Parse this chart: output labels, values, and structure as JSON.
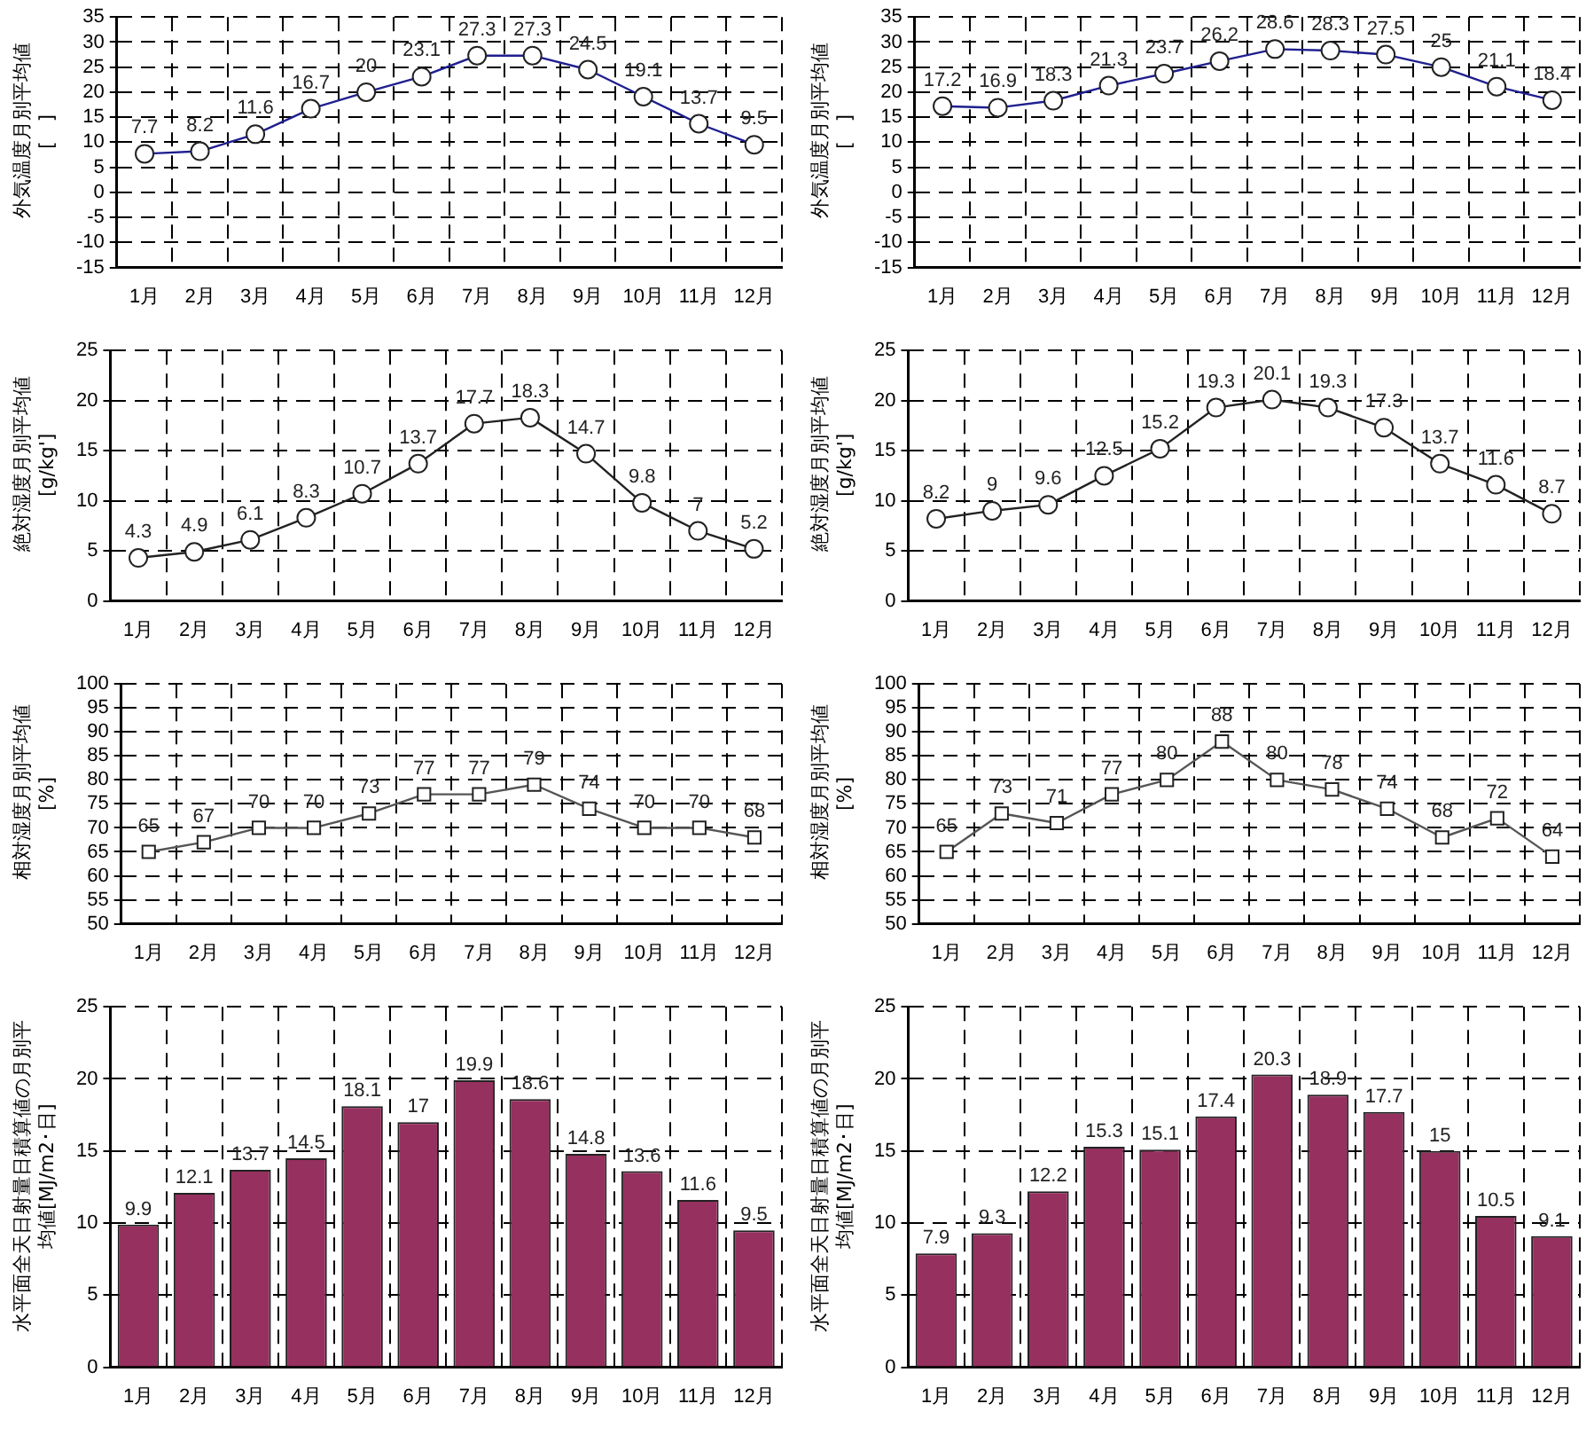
{
  "chart_data": [
    {
      "type": "line",
      "ylabel": "外気温度月別平均値[　]",
      "categories": [
        "1月",
        "2月",
        "3月",
        "4月",
        "5月",
        "6月",
        "7月",
        "8月",
        "9月",
        "10月",
        "11月",
        "12月"
      ],
      "series": [
        {
          "color": "#1f1f8f",
          "values": [
            7.7,
            8.2,
            11.6,
            16.7,
            20,
            23.1,
            27.3,
            27.3,
            24.5,
            19.1,
            13.7,
            9.5
          ]
        }
      ],
      "ylim": [
        -15,
        35
      ],
      "yticks": [
        -15,
        -10,
        -5,
        0,
        5,
        10,
        15,
        20,
        25,
        30,
        35
      ],
      "grid": true,
      "marker": "circle",
      "data_labels": true,
      "legend": false
    },
    {
      "type": "line",
      "ylabel": "外気温度月別平均値[　]",
      "categories": [
        "1月",
        "2月",
        "3月",
        "4月",
        "5月",
        "6月",
        "7月",
        "8月",
        "9月",
        "10月",
        "11月",
        "12月"
      ],
      "series": [
        {
          "color": "#1f1f8f",
          "values": [
            17.2,
            16.9,
            18.3,
            21.3,
            23.7,
            26.2,
            28.6,
            28.3,
            27.5,
            25,
            21.1,
            18.4
          ]
        }
      ],
      "ylim": [
        -15,
        35
      ],
      "yticks": [
        -15,
        -10,
        -5,
        0,
        5,
        10,
        15,
        20,
        25,
        30,
        35
      ],
      "grid": true,
      "marker": "circle",
      "data_labels": true,
      "legend": false
    },
    {
      "type": "line",
      "ylabel": "絶対湿度月別平均値[g/kg']",
      "categories": [
        "1月",
        "2月",
        "3月",
        "4月",
        "5月",
        "6月",
        "7月",
        "8月",
        "9月",
        "10月",
        "11月",
        "12月"
      ],
      "series": [
        {
          "color": "#222222",
          "values": [
            4.3,
            4.9,
            6.1,
            8.3,
            10.7,
            13.7,
            17.7,
            18.3,
            14.7,
            9.8,
            7,
            5.2
          ]
        }
      ],
      "ylim": [
        0,
        25
      ],
      "yticks": [
        0,
        5,
        10,
        15,
        20,
        25
      ],
      "grid": true,
      "marker": "circle",
      "data_labels": true,
      "legend": false
    },
    {
      "type": "line",
      "ylabel": "絶対湿度月別平均値[g/kg']",
      "categories": [
        "1月",
        "2月",
        "3月",
        "4月",
        "5月",
        "6月",
        "7月",
        "8月",
        "9月",
        "10月",
        "11月",
        "12月"
      ],
      "series": [
        {
          "color": "#222222",
          "values": [
            8.2,
            9,
            9.6,
            12.5,
            15.2,
            19.3,
            20.1,
            19.3,
            17.3,
            13.7,
            11.6,
            8.7
          ]
        }
      ],
      "ylim": [
        0,
        25
      ],
      "yticks": [
        0,
        5,
        10,
        15,
        20,
        25
      ],
      "grid": true,
      "marker": "circle",
      "data_labels": true,
      "legend": false
    },
    {
      "type": "line",
      "ylabel": "相対湿度月別平均値[%]",
      "categories": [
        "1月",
        "2月",
        "3月",
        "4月",
        "5月",
        "6月",
        "7月",
        "8月",
        "9月",
        "10月",
        "11月",
        "12月"
      ],
      "series": [
        {
          "color": "#555555",
          "values": [
            65,
            67,
            70,
            70,
            73,
            77,
            77,
            79,
            74,
            70,
            70,
            68
          ]
        }
      ],
      "ylim": [
        50,
        100
      ],
      "yticks": [
        50,
        55,
        60,
        65,
        70,
        75,
        80,
        85,
        90,
        95,
        100
      ],
      "grid": true,
      "marker": "square",
      "data_labels": true,
      "legend": false
    },
    {
      "type": "line",
      "ylabel": "相対湿度月別平均値[%]",
      "categories": [
        "1月",
        "2月",
        "3月",
        "4月",
        "5月",
        "6月",
        "7月",
        "8月",
        "9月",
        "10月",
        "11月",
        "12月"
      ],
      "series": [
        {
          "color": "#555555",
          "values": [
            65,
            73,
            71,
            77,
            80,
            88,
            80,
            78,
            74,
            68,
            72,
            64
          ]
        }
      ],
      "ylim": [
        50,
        100
      ],
      "yticks": [
        50,
        55,
        60,
        65,
        70,
        75,
        80,
        85,
        90,
        95,
        100
      ],
      "grid": true,
      "marker": "square",
      "data_labels": true,
      "legend": false
    },
    {
      "type": "bar",
      "ylabel": "水平面全天日射量日積算値の月別平均値[MJ/m2･日]",
      "categories": [
        "1月",
        "2月",
        "3月",
        "4月",
        "5月",
        "6月",
        "7月",
        "8月",
        "9月",
        "10月",
        "11月",
        "12月"
      ],
      "series": [
        {
          "color": "#96305f",
          "values": [
            9.9,
            12.1,
            13.7,
            14.5,
            18.1,
            17,
            19.9,
            18.6,
            14.8,
            13.6,
            11.6,
            9.5
          ]
        }
      ],
      "ylim": [
        0,
        25
      ],
      "yticks": [
        0,
        5,
        10,
        15,
        20,
        25
      ],
      "grid": true,
      "data_labels": true,
      "legend": false
    },
    {
      "type": "bar",
      "ylabel": "水平面全天日射量日積算値の月別平均値[MJ/m2･日]",
      "categories": [
        "1月",
        "2月",
        "3月",
        "4月",
        "5月",
        "6月",
        "7月",
        "8月",
        "9月",
        "10月",
        "11月",
        "12月"
      ],
      "series": [
        {
          "color": "#96305f",
          "values": [
            7.9,
            9.3,
            12.2,
            15.3,
            15.1,
            17.4,
            20.3,
            18.9,
            17.7,
            15,
            10.5,
            9.1
          ]
        }
      ],
      "ylim": [
        0,
        25
      ],
      "yticks": [
        0,
        5,
        10,
        15,
        20,
        25
      ],
      "grid": true,
      "data_labels": true,
      "legend": false
    }
  ]
}
